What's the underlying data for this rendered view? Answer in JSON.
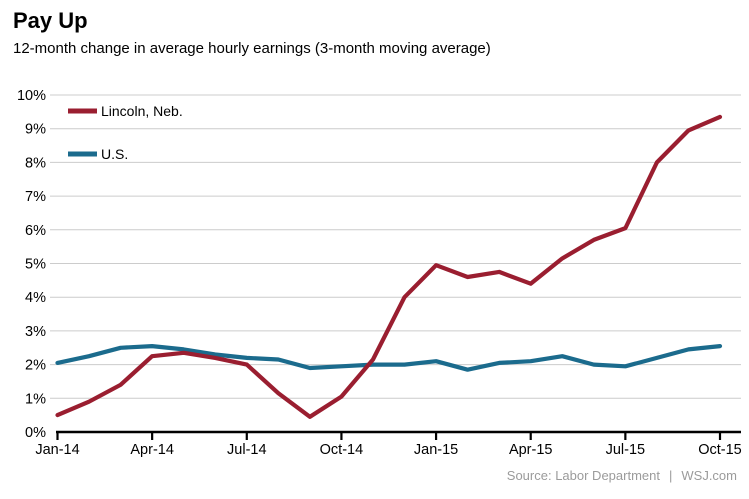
{
  "header": {
    "title": "Pay Up",
    "subtitle": "12-month change in average hourly earnings (3-month moving average)"
  },
  "footer": {
    "source_prefix": "Source: Labor Department",
    "divider": "|",
    "brand": "WSJ.com"
  },
  "chart_data": {
    "type": "line",
    "title": "Pay Up",
    "subtitle": "12-month change in average hourly earnings (3-month moving average)",
    "categories": [
      "Jan-14",
      "Feb-14",
      "Mar-14",
      "Apr-14",
      "May-14",
      "Jun-14",
      "Jul-14",
      "Aug-14",
      "Sep-14",
      "Oct-14",
      "Nov-14",
      "Dec-14",
      "Jan-15",
      "Feb-15",
      "Mar-15",
      "Apr-15",
      "May-15",
      "Jun-15",
      "Jul-15",
      "Aug-15",
      "Sep-15",
      "Oct-15"
    ],
    "x_tick_labels": [
      "Jan-14",
      "Apr-14",
      "Jul-14",
      "Oct-14",
      "Jan-15",
      "Apr-15",
      "Jul-15",
      "Oct-15"
    ],
    "x_tick_every_n_months": 3,
    "series": [
      {
        "name": "Lincoln, Neb.",
        "color": "#9A1E30",
        "values": [
          0.5,
          0.9,
          1.4,
          2.25,
          2.35,
          2.2,
          2.0,
          1.15,
          0.45,
          1.05,
          2.15,
          4.0,
          4.95,
          4.6,
          4.75,
          4.4,
          5.15,
          5.7,
          6.05,
          8.0,
          8.95,
          9.35
        ]
      },
      {
        "name": "U.S.",
        "color": "#1B6B8D",
        "values": [
          2.05,
          2.25,
          2.5,
          2.55,
          2.45,
          2.3,
          2.2,
          2.15,
          1.9,
          1.95,
          2.0,
          2.0,
          2.1,
          1.85,
          2.05,
          2.1,
          2.25,
          2.0,
          1.95,
          2.2,
          2.45,
          2.55
        ]
      }
    ],
    "ylim": [
      0,
      10
    ],
    "y_ticks": [
      "0%",
      "1%",
      "2%",
      "3%",
      "4%",
      "5%",
      "6%",
      "7%",
      "8%",
      "9%",
      "10%"
    ],
    "grid": "horizontal",
    "legend_position": "top-left-inside",
    "source": "Source: Labor Department | WSJ.com",
    "style": {
      "grid_color": "#cccccc",
      "axis_color": "#000000",
      "tick_label_color": "#000000",
      "line_width": 4.2
    }
  }
}
